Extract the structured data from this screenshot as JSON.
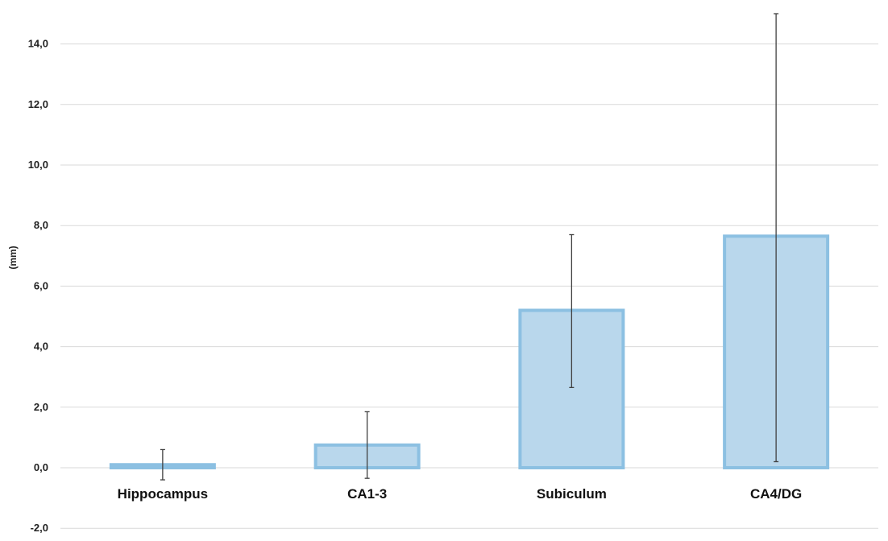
{
  "chart_data": {
    "type": "bar",
    "ylabel": "(mm)",
    "ylim": [
      -2,
      15
    ],
    "yticks": [
      -2,
      0,
      2,
      4,
      6,
      8,
      10,
      12,
      14
    ],
    "ytick_labels": [
      "-2,0",
      "0,0",
      "2,0",
      "4,0",
      "6,0",
      "8,0",
      "10,0",
      "12,0",
      "14,0"
    ],
    "categories": [
      "Hippocampus",
      "CA1-3",
      "Subiculum",
      "CA4/DG"
    ],
    "values": [
      0.1,
      0.75,
      5.2,
      7.65
    ],
    "error_low": [
      -0.4,
      -0.35,
      2.65,
      0.2
    ],
    "error_high": [
      0.6,
      1.85,
      7.7,
      15.0
    ],
    "grid": true,
    "legend": "none",
    "colors": {
      "bar_fill": "#b9d7ec",
      "bar_stroke": "#8cc0e2",
      "error_bar": "#404040"
    }
  }
}
